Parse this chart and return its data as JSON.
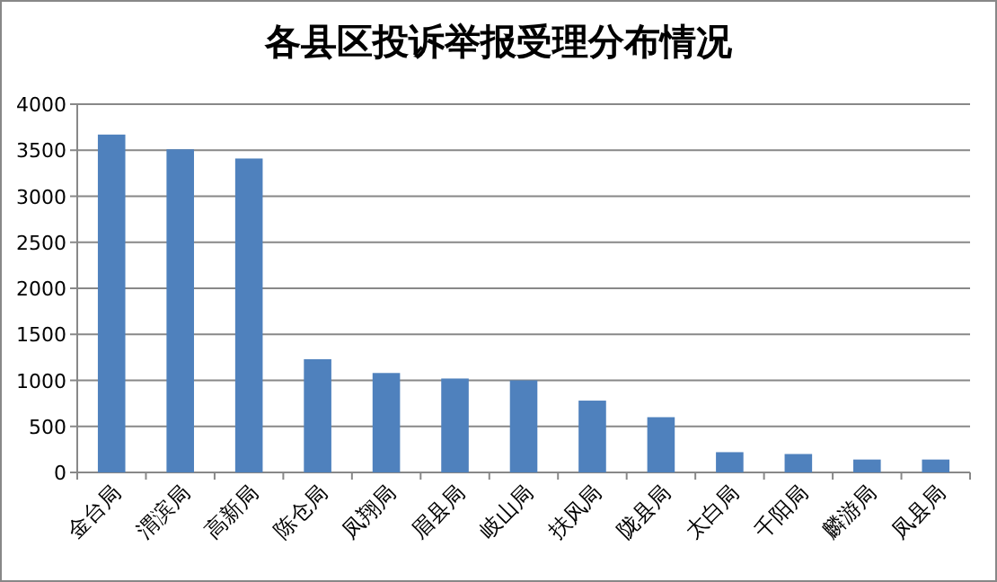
{
  "chart_data": {
    "type": "bar",
    "title": "各县区投诉举报受理分布情况",
    "categories": [
      "金台局",
      "渭滨局",
      "高新局",
      "陈仓局",
      "凤翔局",
      "眉县局",
      "岐山局",
      "扶风局",
      "陇县局",
      "太白局",
      "千阳局",
      "麟游局",
      "凤县局"
    ],
    "values": [
      3670,
      3510,
      3410,
      1230,
      1080,
      1020,
      1000,
      780,
      600,
      220,
      200,
      140,
      140
    ],
    "color": "#4f81bd",
    "ylim": [
      0,
      4000
    ],
    "yticks": [
      0,
      500,
      1000,
      1500,
      2000,
      2500,
      3000,
      3500,
      4000
    ],
    "grid": "y"
  }
}
